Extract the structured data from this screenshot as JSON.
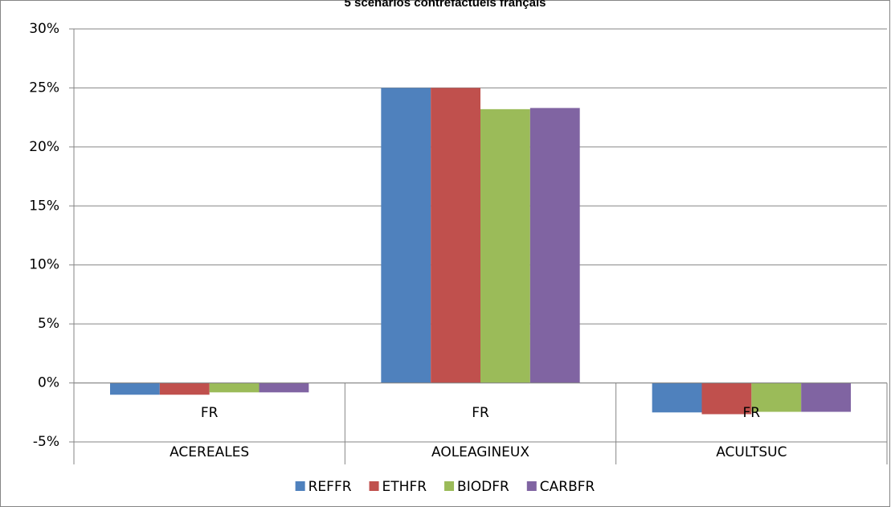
{
  "chart_data": {
    "type": "bar",
    "title": "5 scénarios contrefactuels français",
    "categories": [
      "ACEREALES",
      "AOLEAGINEUX",
      "ACULTSUC"
    ],
    "subcategories": [
      "FR",
      "FR",
      "FR"
    ],
    "series": [
      {
        "name": "REFFR",
        "color": "#4f81bd",
        "values": [
          -1.0,
          25.0,
          -2.5
        ]
      },
      {
        "name": "ETHFR",
        "color": "#c0504d",
        "values": [
          -1.0,
          25.0,
          -2.65
        ]
      },
      {
        "name": "BIODFR",
        "color": "#9bbb59",
        "values": [
          -0.8,
          23.2,
          -2.45
        ]
      },
      {
        "name": "CARBFR",
        "color": "#8064a2",
        "values": [
          -0.8,
          23.3,
          -2.45
        ]
      }
    ],
    "ylim": [
      -5,
      30
    ],
    "yticks": [
      {
        "value": -5,
        "label": "-5%"
      },
      {
        "value": 0,
        "label": "0%"
      },
      {
        "value": 5,
        "label": "5%"
      },
      {
        "value": 10,
        "label": "10%"
      },
      {
        "value": 15,
        "label": "15%"
      },
      {
        "value": 20,
        "label": "20%"
      },
      {
        "value": 25,
        "label": "25%"
      },
      {
        "value": 30,
        "label": "30%"
      }
    ],
    "grid": true,
    "legend": "bottom"
  }
}
